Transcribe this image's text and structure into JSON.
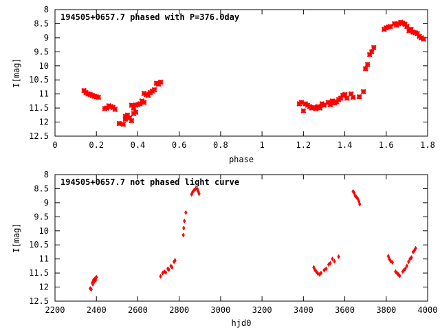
{
  "chart_data": [
    {
      "type": "scatter",
      "title": "194505+0657.7 phased with P=376.0day",
      "xlabel": "phase",
      "ylabel": "I[mag]",
      "xlim": [
        0,
        1.8
      ],
      "ylim": [
        8,
        12.5
      ],
      "y_inverted": true,
      "xticks": [
        0,
        0.2,
        0.4,
        0.6,
        0.8,
        1,
        1.2,
        1.4,
        1.6,
        1.8
      ],
      "xtick_labels": [
        "0",
        "0.2",
        "0.4",
        "0.6",
        "0.8",
        "1",
        "1.2",
        "1.4",
        "1.6",
        "1.8"
      ],
      "yticks": [
        8,
        8.5,
        9,
        9.5,
        10,
        10.5,
        11,
        11.5,
        12,
        12.5
      ],
      "ytick_labels": [
        "8",
        "8.5",
        "9",
        "9.5",
        "10",
        "10.5",
        "11",
        "11.5",
        "12",
        "12.5"
      ],
      "marker": "cross",
      "color": "#ff0000",
      "points": [
        [
          0.14,
          10.88
        ],
        [
          0.15,
          10.95
        ],
        [
          0.16,
          11.0
        ],
        [
          0.17,
          11.02
        ],
        [
          0.18,
          11.05
        ],
        [
          0.19,
          11.08
        ],
        [
          0.2,
          11.1
        ],
        [
          0.21,
          11.12
        ],
        [
          0.24,
          11.52
        ],
        [
          0.25,
          11.5
        ],
        [
          0.26,
          11.42
        ],
        [
          0.27,
          11.45
        ],
        [
          0.28,
          11.48
        ],
        [
          0.29,
          11.55
        ],
        [
          0.31,
          12.05
        ],
        [
          0.33,
          12.08
        ],
        [
          0.34,
          11.9
        ],
        [
          0.34,
          11.8
        ],
        [
          0.35,
          11.75
        ],
        [
          0.36,
          11.85
        ],
        [
          0.37,
          11.95
        ],
        [
          0.37,
          11.4
        ],
        [
          0.38,
          11.5
        ],
        [
          0.38,
          11.7
        ],
        [
          0.39,
          11.65
        ],
        [
          0.39,
          11.4
        ],
        [
          0.4,
          11.38
        ],
        [
          0.41,
          11.35
        ],
        [
          0.42,
          11.25
        ],
        [
          0.43,
          11.3
        ],
        [
          0.43,
          10.98
        ],
        [
          0.44,
          11.02
        ],
        [
          0.45,
          11.05
        ],
        [
          0.46,
          10.95
        ],
        [
          0.47,
          10.9
        ],
        [
          0.48,
          10.85
        ],
        [
          0.49,
          10.62
        ],
        [
          0.5,
          10.65
        ],
        [
          0.51,
          10.58
        ],
        [
          1.18,
          11.35
        ],
        [
          1.19,
          11.3
        ],
        [
          1.2,
          11.6
        ],
        [
          1.21,
          11.35
        ],
        [
          1.22,
          11.4
        ],
        [
          1.23,
          11.45
        ],
        [
          1.24,
          11.5
        ],
        [
          1.25,
          11.48
        ],
        [
          1.26,
          11.52
        ],
        [
          1.27,
          11.45
        ],
        [
          1.28,
          11.5
        ],
        [
          1.29,
          11.35
        ],
        [
          1.3,
          11.4
        ],
        [
          1.32,
          11.3
        ],
        [
          1.33,
          11.38
        ],
        [
          1.34,
          11.25
        ],
        [
          1.35,
          11.32
        ],
        [
          1.36,
          11.28
        ],
        [
          1.37,
          11.2
        ],
        [
          1.38,
          11.15
        ],
        [
          1.39,
          11.05
        ],
        [
          1.4,
          11.02
        ],
        [
          1.41,
          11.15
        ],
        [
          1.43,
          11.0
        ],
        [
          1.44,
          11.12
        ],
        [
          1.47,
          11.1
        ],
        [
          1.49,
          10.92
        ],
        [
          1.5,
          10.1
        ],
        [
          1.51,
          9.95
        ],
        [
          1.52,
          9.6
        ],
        [
          1.53,
          9.5
        ],
        [
          1.54,
          9.35
        ],
        [
          1.59,
          8.7
        ],
        [
          1.6,
          8.65
        ],
        [
          1.61,
          8.62
        ],
        [
          1.62,
          8.6
        ],
        [
          1.64,
          8.5
        ],
        [
          1.65,
          8.55
        ],
        [
          1.66,
          8.5
        ],
        [
          1.67,
          8.45
        ],
        [
          1.68,
          8.48
        ],
        [
          1.69,
          8.52
        ],
        [
          1.7,
          8.6
        ],
        [
          1.71,
          8.75
        ],
        [
          1.72,
          8.7
        ],
        [
          1.73,
          8.8
        ],
        [
          1.74,
          8.82
        ],
        [
          1.75,
          8.85
        ],
        [
          1.76,
          8.95
        ],
        [
          1.77,
          9.0
        ],
        [
          1.78,
          9.05
        ]
      ]
    },
    {
      "type": "scatter",
      "title": "194505+0657.7 not phased light curve",
      "xlabel": "hjd0",
      "ylabel": "I[mag]",
      "xlim": [
        2200,
        4000
      ],
      "ylim": [
        8,
        12.5
      ],
      "y_inverted": true,
      "xticks": [
        2200,
        2400,
        2600,
        2800,
        3000,
        3200,
        3400,
        3600,
        3800,
        4000
      ],
      "xtick_labels": [
        "2200",
        "2400",
        "2600",
        "2800",
        "3000",
        "3200",
        "3400",
        "3600",
        "3800",
        "4000"
      ],
      "yticks": [
        8,
        8.5,
        9,
        9.5,
        10,
        10.5,
        11,
        11.5,
        12,
        12.5
      ],
      "ytick_labels": [
        "8",
        "8.5",
        "9",
        "9.5",
        "10",
        "10.5",
        "11",
        "11.5",
        "12",
        "12.5"
      ],
      "marker": "diamond",
      "color": "#ff0000",
      "points": [
        [
          2370,
          12.05
        ],
        [
          2375,
          12.08
        ],
        [
          2380,
          11.85
        ],
        [
          2383,
          11.9
        ],
        [
          2386,
          11.75
        ],
        [
          2390,
          11.8
        ],
        [
          2393,
          11.7
        ],
        [
          2396,
          11.75
        ],
        [
          2400,
          11.65
        ],
        [
          2710,
          11.62
        ],
        [
          2720,
          11.5
        ],
        [
          2728,
          11.45
        ],
        [
          2735,
          11.48
        ],
        [
          2745,
          11.35
        ],
        [
          2750,
          11.38
        ],
        [
          2760,
          11.25
        ],
        [
          2765,
          11.3
        ],
        [
          2775,
          11.1
        ],
        [
          2780,
          11.05
        ],
        [
          2820,
          10.15
        ],
        [
          2822,
          9.9
        ],
        [
          2825,
          9.65
        ],
        [
          2832,
          9.35
        ],
        [
          2860,
          8.7
        ],
        [
          2865,
          8.62
        ],
        [
          2872,
          8.55
        ],
        [
          2880,
          8.5
        ],
        [
          2888,
          8.52
        ],
        [
          2892,
          8.6
        ],
        [
          2896,
          8.68
        ],
        [
          3450,
          11.3
        ],
        [
          3455,
          11.38
        ],
        [
          3462,
          11.45
        ],
        [
          3470,
          11.52
        ],
        [
          3478,
          11.55
        ],
        [
          3485,
          11.5
        ],
        [
          3500,
          11.4
        ],
        [
          3510,
          11.35
        ],
        [
          3522,
          11.2
        ],
        [
          3530,
          11.15
        ],
        [
          3540,
          11.0
        ],
        [
          3550,
          11.08
        ],
        [
          3570,
          10.92
        ],
        [
          3640,
          8.6
        ],
        [
          3645,
          8.65
        ],
        [
          3650,
          8.75
        ],
        [
          3656,
          8.8
        ],
        [
          3662,
          8.85
        ],
        [
          3668,
          8.95
        ],
        [
          3672,
          9.05
        ],
        [
          3810,
          10.9
        ],
        [
          3815,
          11.0
        ],
        [
          3822,
          11.08
        ],
        [
          3830,
          11.12
        ],
        [
          3845,
          11.45
        ],
        [
          3852,
          11.5
        ],
        [
          3858,
          11.55
        ],
        [
          3865,
          11.6
        ],
        [
          3880,
          11.45
        ],
        [
          3885,
          11.4
        ],
        [
          3892,
          11.35
        ],
        [
          3900,
          11.25
        ],
        [
          3908,
          11.1
        ],
        [
          3915,
          11.0
        ],
        [
          3922,
          10.95
        ],
        [
          3930,
          10.75
        ],
        [
          3936,
          10.7
        ],
        [
          3942,
          10.62
        ]
      ]
    }
  ]
}
